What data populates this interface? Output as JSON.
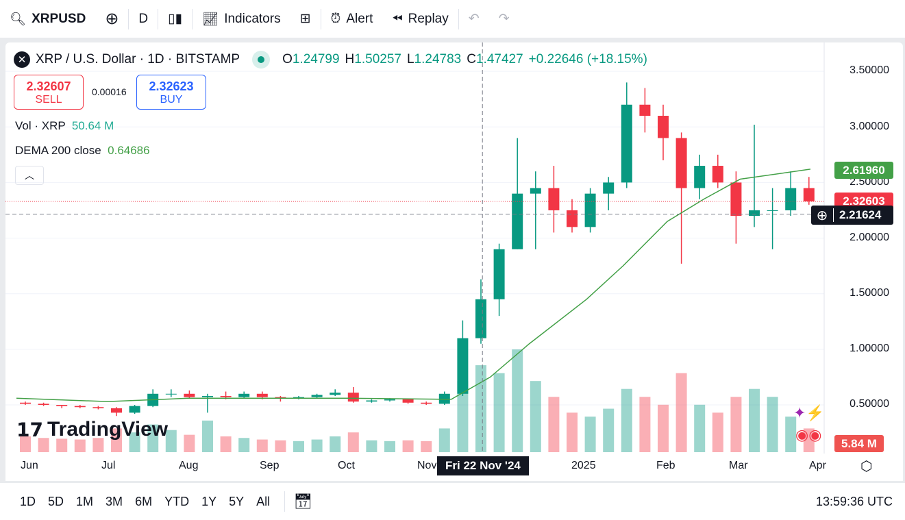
{
  "toolbar": {
    "symbol": "XRPUSD",
    "interval": "D",
    "indicators": "Indicators",
    "alert": "Alert",
    "replay": "Replay"
  },
  "legend": {
    "title": "XRP / U.S. Dollar · 1D · BITSTAMP",
    "o_label": "O",
    "o": "1.24799",
    "h_label": "H",
    "h": "1.50257",
    "l_label": "L",
    "l": "1.24783",
    "c_label": "C",
    "c": "1.47427",
    "change": "+0.22646 (+18.15%)"
  },
  "trade": {
    "sell_price": "2.32607",
    "sell_label": "SELL",
    "spread": "0.00016",
    "buy_price": "2.32623",
    "buy_label": "BUY"
  },
  "indicators": {
    "vol_label": "Vol · XRP",
    "vol_value": "50.64 M",
    "dema_label": "DEMA 200 close",
    "dema_value": "0.64686"
  },
  "price_axis": {
    "labels": [
      "3.50000",
      "3.00000",
      "2.50000",
      "2.00000",
      "1.50000",
      "1.00000",
      "0.50000"
    ],
    "dema_tag": "2.61960",
    "last_tag": "2.32603",
    "cursor_tag": "2.21624",
    "volume_tag": "5.84 M"
  },
  "time_axis": {
    "labels": [
      "Jun",
      "Jul",
      "Aug",
      "Sep",
      "Oct",
      "Nov",
      "2025",
      "Feb",
      "Mar",
      "Apr"
    ],
    "cursor_date": "Fri 22 Nov '24"
  },
  "branding": "TradingView",
  "bottom": {
    "ranges": [
      "1D",
      "5D",
      "1M",
      "3M",
      "6M",
      "YTD",
      "1Y",
      "5Y",
      "All"
    ],
    "clock": "13:59:36 UTC"
  },
  "colors": {
    "up": "#089981",
    "down": "#f23645",
    "dema": "#43a047"
  },
  "chart_data": {
    "type": "candlestick",
    "title": "XRP / U.S. Dollar · 1D · BITSTAMP",
    "ylim": [
      0.3,
      3.6
    ],
    "note": "approximate weekly aggregation",
    "ohlc": [
      [
        "2024-05-27",
        0.52,
        0.53,
        0.5,
        0.51
      ],
      [
        "2024-06-03",
        0.51,
        0.52,
        0.49,
        0.5
      ],
      [
        "2024-06-10",
        0.5,
        0.5,
        0.47,
        0.49
      ],
      [
        "2024-06-17",
        0.49,
        0.5,
        0.47,
        0.48
      ],
      [
        "2024-06-24",
        0.48,
        0.49,
        0.46,
        0.47
      ],
      [
        "2024-07-01",
        0.47,
        0.48,
        0.4,
        0.43
      ],
      [
        "2024-07-08",
        0.43,
        0.5,
        0.42,
        0.49
      ],
      [
        "2024-07-15",
        0.49,
        0.64,
        0.48,
        0.6
      ],
      [
        "2024-07-22",
        0.6,
        0.64,
        0.57,
        0.6
      ],
      [
        "2024-07-29",
        0.6,
        0.63,
        0.56,
        0.57
      ],
      [
        "2024-08-05",
        0.57,
        0.6,
        0.43,
        0.58
      ],
      [
        "2024-08-12",
        0.58,
        0.62,
        0.55,
        0.57
      ],
      [
        "2024-08-19",
        0.57,
        0.62,
        0.56,
        0.6
      ],
      [
        "2024-08-26",
        0.6,
        0.62,
        0.55,
        0.57
      ],
      [
        "2024-09-02",
        0.57,
        0.58,
        0.53,
        0.56
      ],
      [
        "2024-09-09",
        0.56,
        0.58,
        0.55,
        0.57
      ],
      [
        "2024-09-16",
        0.57,
        0.6,
        0.56,
        0.59
      ],
      [
        "2024-09-23",
        0.59,
        0.64,
        0.58,
        0.61
      ],
      [
        "2024-09-30",
        0.61,
        0.66,
        0.52,
        0.53
      ],
      [
        "2024-10-07",
        0.53,
        0.55,
        0.52,
        0.54
      ],
      [
        "2024-10-14",
        0.54,
        0.56,
        0.53,
        0.55
      ],
      [
        "2024-10-21",
        0.55,
        0.55,
        0.51,
        0.52
      ],
      [
        "2024-10-28",
        0.52,
        0.53,
        0.5,
        0.51
      ],
      [
        "2024-11-04",
        0.51,
        0.62,
        0.5,
        0.6
      ],
      [
        "2024-11-11",
        0.6,
        1.26,
        0.58,
        1.1
      ],
      [
        "2024-11-18",
        1.1,
        1.63,
        1.05,
        1.45
      ],
      [
        "2024-11-25",
        1.45,
        1.95,
        1.3,
        1.9
      ],
      [
        "2024-12-02",
        1.9,
        2.9,
        1.9,
        2.4
      ],
      [
        "2024-12-09",
        2.4,
        2.6,
        1.9,
        2.45
      ],
      [
        "2024-12-16",
        2.45,
        2.65,
        2.05,
        2.25
      ],
      [
        "2024-12-23",
        2.25,
        2.35,
        2.05,
        2.1
      ],
      [
        "2024-12-30",
        2.1,
        2.45,
        2.05,
        2.4
      ],
      [
        "2025-01-06",
        2.4,
        2.55,
        2.25,
        2.5
      ],
      [
        "2025-01-13",
        2.5,
        3.4,
        2.45,
        3.2
      ],
      [
        "2025-01-20",
        3.2,
        3.35,
        2.95,
        3.1
      ],
      [
        "2025-01-27",
        3.1,
        3.2,
        2.7,
        2.9
      ],
      [
        "2025-02-03",
        2.9,
        2.95,
        1.77,
        2.45
      ],
      [
        "2025-02-10",
        2.45,
        2.75,
        2.35,
        2.65
      ],
      [
        "2025-02-17",
        2.65,
        2.75,
        2.45,
        2.5
      ],
      [
        "2025-02-24",
        2.5,
        2.6,
        1.95,
        2.2
      ],
      [
        "2025-03-03",
        2.2,
        3.02,
        2.1,
        2.25
      ],
      [
        "2025-03-10",
        2.25,
        2.45,
        1.9,
        2.25
      ],
      [
        "2025-03-17",
        2.25,
        2.6,
        2.2,
        2.45
      ],
      [
        "2025-03-24",
        2.45,
        2.55,
        2.3,
        2.33
      ]
    ],
    "volume": [
      20,
      18,
      17,
      16,
      18,
      30,
      25,
      35,
      28,
      22,
      40,
      20,
      18,
      16,
      15,
      14,
      16,
      20,
      25,
      15,
      14,
      15,
      14,
      30,
      90,
      110,
      100,
      130,
      90,
      70,
      50,
      45,
      55,
      80,
      70,
      60,
      100,
      60,
      50,
      70,
      80,
      70,
      45,
      30
    ],
    "dema": [
      [
        "2024-05-27",
        0.56
      ],
      [
        "2024-07-01",
        0.53
      ],
      [
        "2024-08-01",
        0.56
      ],
      [
        "2024-10-01",
        0.56
      ],
      [
        "2024-11-10",
        0.55
      ],
      [
        "2024-11-25",
        0.75
      ],
      [
        "2024-12-10",
        1.05
      ],
      [
        "2025-01-01",
        1.45
      ],
      [
        "2025-01-15",
        1.75
      ],
      [
        "2025-02-01",
        2.15
      ],
      [
        "2025-02-15",
        2.35
      ],
      [
        "2025-03-01",
        2.53
      ],
      [
        "2025-03-28",
        2.62
      ]
    ]
  }
}
